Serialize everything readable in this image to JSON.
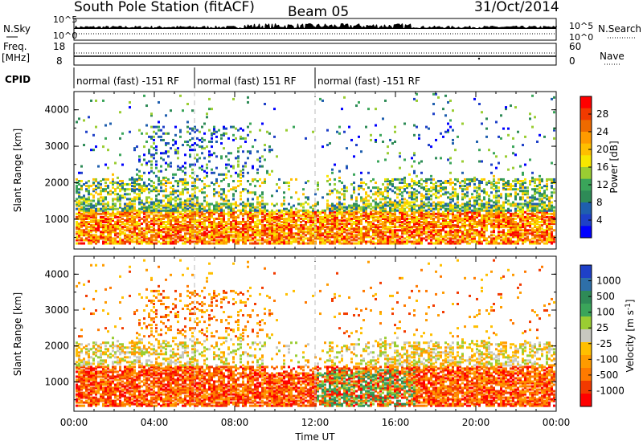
{
  "header": {
    "station": "South Pole Station (fitACF)",
    "beam": "Beam 05",
    "date": "31/Oct/2014"
  },
  "top_panels": {
    "nsky_label": "N.Sky",
    "nsky_top_tick": "10^5",
    "nsky_bottom_tick": "10^0",
    "nsearch_label": "N.Search",
    "freq_label_1": "Freq.",
    "freq_label_2": "[MHz]",
    "freq_ticks": [
      "18",
      "8"
    ],
    "nave_ticks": [
      "60",
      "0"
    ],
    "nave_label": "Nave",
    "cpid_label": "CPID",
    "cpid_segments": [
      {
        "start_hour": 0,
        "end_hour": 6,
        "label": "normal (fast) -151 RF"
      },
      {
        "start_hour": 6,
        "end_hour": 12,
        "label": "normal (fast) 151 RF"
      },
      {
        "start_hour": 12,
        "end_hour": 24,
        "label": "normal (fast) -151 RF"
      }
    ]
  },
  "power_colorbar": {
    "title": "Power [dB]",
    "labels": [
      "28",
      "24",
      "20",
      "16",
      "12",
      "8",
      "4"
    ],
    "colors": [
      "#ff0000",
      "#f23a00",
      "#ee6a00",
      "#ff9b00",
      "#ffbf00",
      "#f7e700",
      "#9acd32",
      "#3aa55a",
      "#2e8b57",
      "#1f5fae",
      "#1e40c8",
      "#0000ff"
    ]
  },
  "velocity_colorbar": {
    "title": "Velocity [m s^-1]",
    "labels": [
      "1000",
      "500",
      "100",
      "25",
      "-25",
      "-100",
      "-500",
      "-1000"
    ],
    "colors": [
      "#1e40c8",
      "#2e6fa8",
      "#2e8b57",
      "#3aa55a",
      "#9acd32",
      "#c8c8c0",
      "#ffbf00",
      "#ff9b00",
      "#ff7a00",
      "#f23a00",
      "#ff0000"
    ]
  },
  "chart_data": [
    {
      "type": "heatmap",
      "title": "Power",
      "ylabel": "Slant Range [km]",
      "xlabel": "",
      "ylim": [
        180,
        4500
      ],
      "xlim": [
        0,
        24
      ],
      "yticks": [
        "4000",
        "3000",
        "2000",
        "1000"
      ],
      "xticks": [
        "00:00",
        "04:00",
        "08:00",
        "12:00",
        "16:00",
        "20:00",
        "00:00"
      ],
      "colorbar_range": [
        0,
        30
      ]
    },
    {
      "type": "heatmap",
      "title": "Velocity",
      "ylabel": "Slant Range [km]",
      "xlabel": "Time UT",
      "ylim": [
        180,
        4500
      ],
      "xlim": [
        0,
        24
      ],
      "yticks": [
        "4000",
        "3000",
        "2000",
        "1000"
      ],
      "xticks": [
        "00:00",
        "04:00",
        "08:00",
        "12:00",
        "16:00",
        "20:00",
        "00:00"
      ],
      "colorbar_range": [
        -1000,
        1000
      ]
    }
  ]
}
